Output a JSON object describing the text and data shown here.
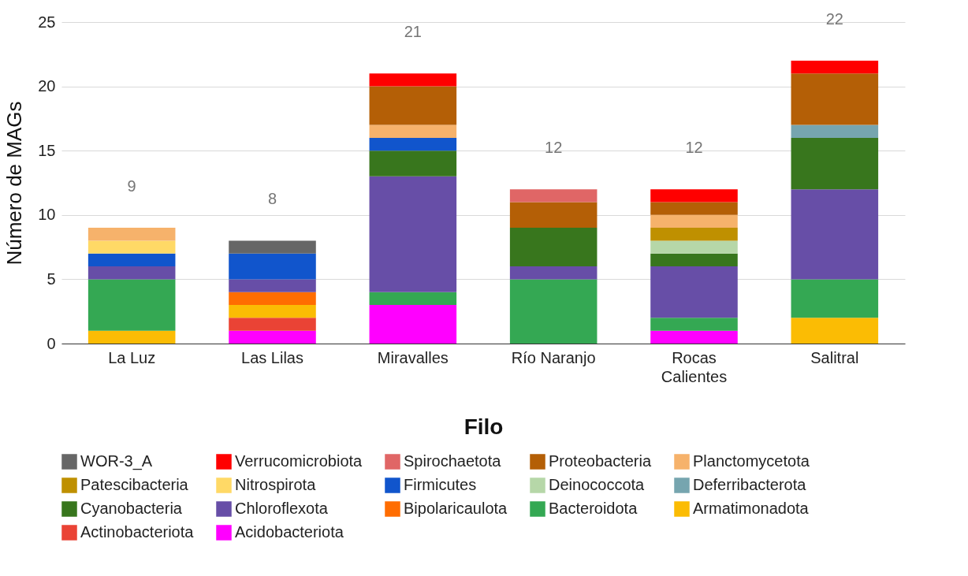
{
  "chart_data": {
    "type": "bar",
    "stacked": true,
    "xlabel": "Filo",
    "ylabel": "Número de MAGs",
    "categories": [
      "La Luz",
      "Las Lilas",
      "Miravalles",
      "Río Naranjo",
      "Rocas Calientes",
      "Salitral"
    ],
    "ylim": [
      0,
      25
    ],
    "yticks": [
      0,
      5,
      10,
      15,
      20,
      25
    ],
    "grid": "y",
    "legend": "bottom",
    "totals": [
      "9",
      "8",
      "21",
      "12",
      "12",
      "22"
    ],
    "series": [
      {
        "name": "Acidobacteriota",
        "color": "#ff00ff",
        "values": [
          null,
          1,
          3,
          null,
          1,
          null
        ]
      },
      {
        "name": "Actinobacteriota",
        "color": "#ea4335",
        "values": [
          null,
          1,
          null,
          null,
          null,
          null
        ]
      },
      {
        "name": "Armatimonadota",
        "color": "#fbbc04",
        "values": [
          1,
          1,
          null,
          null,
          null,
          2
        ]
      },
      {
        "name": "Bacteroidota",
        "color": "#34a853",
        "values": [
          4,
          null,
          1,
          5,
          1,
          3
        ]
      },
      {
        "name": "Bipolaricaulota",
        "color": "#ff6d01",
        "values": [
          null,
          1,
          null,
          null,
          null,
          null
        ]
      },
      {
        "name": "Chloroflexota",
        "color": "#674ea7",
        "values": [
          1,
          1,
          9,
          1,
          4,
          7
        ]
      },
      {
        "name": "Cyanobacteria",
        "color": "#38761d",
        "values": [
          null,
          null,
          2,
          3,
          1,
          4
        ]
      },
      {
        "name": "Deferribacterota",
        "color": "#76a5af",
        "values": [
          null,
          null,
          null,
          null,
          null,
          1
        ]
      },
      {
        "name": "Deinococcota",
        "color": "#b6d7a8",
        "values": [
          null,
          null,
          null,
          null,
          1,
          null
        ]
      },
      {
        "name": "Firmicutes",
        "color": "#1155cc",
        "values": [
          1,
          2,
          1,
          null,
          null,
          null
        ]
      },
      {
        "name": "Nitrospirota",
        "color": "#ffd966",
        "values": [
          1,
          null,
          null,
          null,
          null,
          null
        ]
      },
      {
        "name": "Patescibacteria",
        "color": "#bf9000",
        "values": [
          null,
          null,
          null,
          null,
          1,
          null
        ]
      },
      {
        "name": "Planctomycetota",
        "color": "#f6b26b",
        "values": [
          1,
          null,
          1,
          null,
          1,
          null
        ]
      },
      {
        "name": "Proteobacteria",
        "color": "#b45f06",
        "values": [
          null,
          null,
          3,
          2,
          1,
          4
        ]
      },
      {
        "name": "Spirochaetota",
        "color": "#e06666",
        "values": [
          null,
          null,
          null,
          1,
          null,
          null
        ]
      },
      {
        "name": "Verrucomicrobiota",
        "color": "#ff0000",
        "values": [
          null,
          null,
          1,
          null,
          1,
          1
        ]
      },
      {
        "name": "WOR-3_A",
        "color": "#666666",
        "values": [
          null,
          1,
          null,
          null,
          null,
          null
        ]
      }
    ]
  }
}
